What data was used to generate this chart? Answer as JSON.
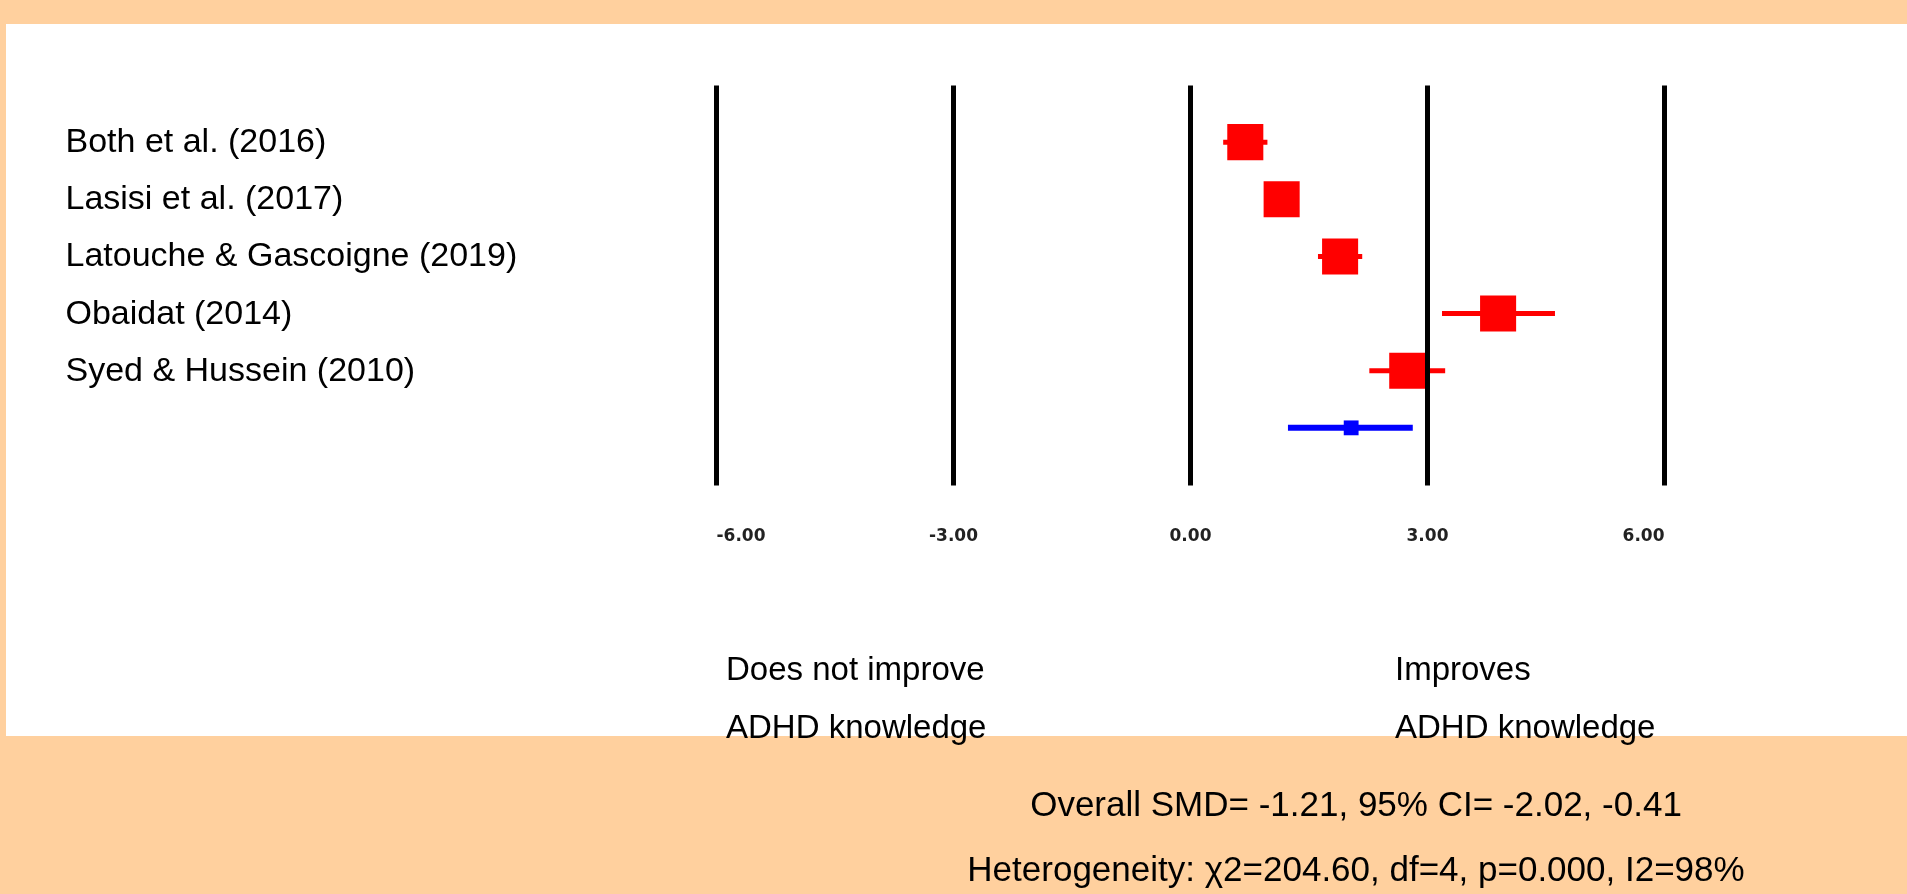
{
  "chart_data": {
    "type": "scatter",
    "orientation": "horizontal",
    "categories": [
      "Both et al. (2016)",
      "Lasisi et al. (2017)",
      "Latouche & Gascoigne (2019)",
      "Obaidat (2014)",
      "Syed & Hussein (2010)",
      null
    ],
    "series": [
      {
        "color": "#ff0000",
        "marker": "square",
        "values": [
          0.7,
          1.16,
          1.9,
          3.9,
          2.75,
          null
        ],
        "errors": [
          [
            0.42,
            0.98
          ],
          null,
          [
            1.62,
            2.18
          ],
          [
            3.19,
            4.62
          ],
          [
            2.27,
            3.23
          ],
          null
        ]
      },
      {
        "color": "#0000ff",
        "marker": "square",
        "values": [
          null,
          null,
          null,
          null,
          null,
          2.04
        ],
        "errors": [
          null,
          null,
          null,
          null,
          null,
          [
            1.24,
            2.82
          ]
        ]
      }
    ],
    "xlim": [
      -6,
      6
    ],
    "xticks": [
      {
        "value": -6,
        "label": "-6.00"
      },
      {
        "value": -3,
        "label": "-3.00"
      },
      {
        "value": 0,
        "label": "0.00"
      },
      {
        "value": 3,
        "label": "3.00"
      },
      {
        "value": 6,
        "label": "6.00"
      }
    ],
    "grid": "x",
    "annotations": [
      "Does not improve\nADHD knowledge",
      "Improves\nADHD knowledge",
      "Overall SMD= -1.21, 95% CI= -2.02, -0.41",
      "Heterogeneity: χ2=204.60, df=4, p=0.000, I2=98%"
    ]
  }
}
